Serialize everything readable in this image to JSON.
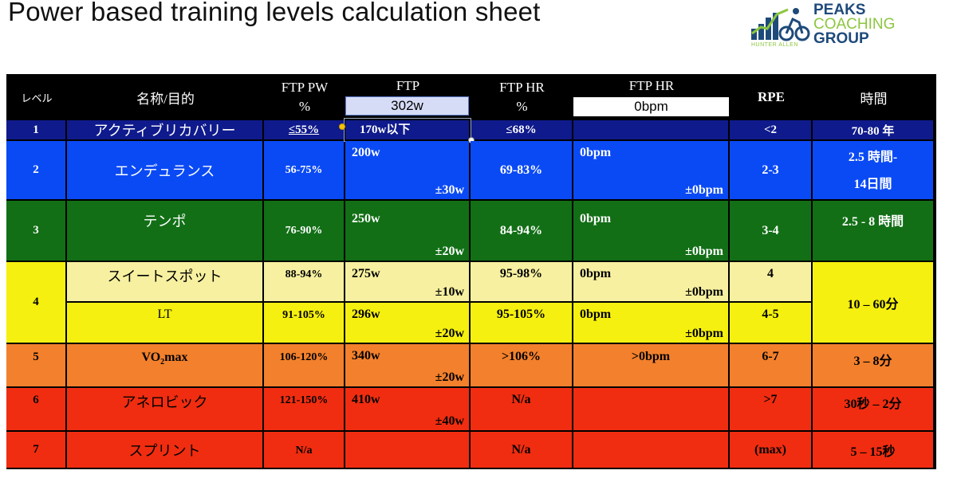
{
  "title": "Power based training levels calculation sheet",
  "logo": {
    "line1": "PEAKS",
    "line2": "COACHING",
    "line3": "GROUP",
    "sub": "HUNTER ALLEN"
  },
  "header": {
    "level": "レベル",
    "name": "名称/目的",
    "ftp_pw_1": "FTP PW",
    "ftp_pw_2": "%",
    "ftp": "FTP",
    "ftp_value": "302w",
    "ftp_hr_pct_1": "FTP HR",
    "ftp_hr_pct_2": "%",
    "ftp_hr": "FTP HR",
    "ftp_hr_value": "0bpm",
    "rpe": "RPE",
    "time": "時間"
  },
  "rows": {
    "r1": {
      "level": "1",
      "name": "アクティブリカバリー",
      "pw": "≤55%",
      "ftp": "170w以下",
      "hr_pct": "≤68%",
      "hr": "",
      "rpe": "<2",
      "time": "70-80 年"
    },
    "r2": {
      "level": "2",
      "name": "エンデュランス",
      "pw": "56-75%",
      "ftp": "200w",
      "ftp_pm": "±30w",
      "hr_pct": "69-83%",
      "hr": "0bpm",
      "hr_pm": "±0bpm",
      "rpe": "2-3",
      "time1": "2.5 時間-",
      "time2": "14日間"
    },
    "r3": {
      "level": "3",
      "name": "テンポ",
      "pw": "76-90%",
      "ftp": "250w",
      "ftp_pm": "±20w",
      "hr_pct": "84-94%",
      "hr": "0bpm",
      "hr_pm": "±0bpm",
      "rpe": "3-4",
      "time": "2.5 - 8 時間"
    },
    "r4a": {
      "level": "4",
      "name": "スイートスポット",
      "pw": "88-94%",
      "ftp": "275w",
      "ftp_pm": "±10w",
      "hr_pct": "95-98%",
      "hr": "0bpm",
      "hr_pm": "±0bpm",
      "rpe": "4",
      "time": "10 – 60分"
    },
    "r4b": {
      "name": "LT",
      "pw": "91-105%",
      "ftp": "296w",
      "ftp_pm": "±20w",
      "hr_pct": "95-105%",
      "hr": "0bpm",
      "hr_pm": "±0bpm",
      "rpe": "4-5"
    },
    "r5": {
      "level": "5",
      "name_main": "VO",
      "name_sub": "2",
      "name_rest": "max",
      "pw": "106-120%",
      "ftp": "340w",
      "ftp_pm": "±20w",
      "hr_pct": ">106%",
      "hr": ">0bpm",
      "rpe": "6-7",
      "time": "3 – 8分"
    },
    "r6": {
      "level": "6",
      "name": "アネロビック",
      "pw": "121-150%",
      "ftp": "410w",
      "ftp_pm": "±40w",
      "hr_pct": "N/a",
      "hr": "",
      "rpe": ">7",
      "time": "30秒 – 2分"
    },
    "r7": {
      "level": "7",
      "name": "スプリント",
      "pw": "N/a",
      "ftp": "",
      "hr_pct": "N/a",
      "hr": "",
      "rpe": "(max)",
      "time": "5 – 15秒"
    }
  },
  "colors": {
    "navy": "#0f1a8c",
    "blue": "#0a4af5",
    "green": "#126f16",
    "paleyellow": "#f6f0a0",
    "yellow": "#f5f00f",
    "orange": "#f3802c",
    "red": "#f02d10",
    "black": "#000000"
  }
}
